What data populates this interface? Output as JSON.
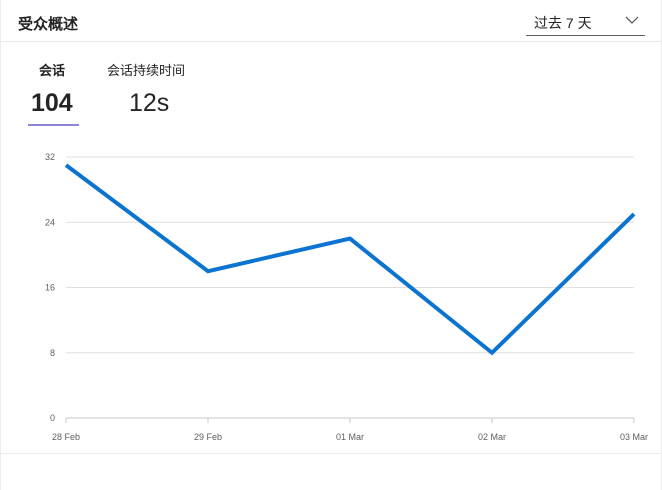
{
  "header": {
    "title": "受众概述",
    "dropdown": {
      "selected": "过去 7 天",
      "icon": "chevron-down-icon"
    }
  },
  "tabs": [
    {
      "label": "会话",
      "value": "104",
      "active": true
    },
    {
      "label": "会话持续时间",
      "value": "12s",
      "active": false
    }
  ],
  "colors": {
    "line": "#0a74d0",
    "tab_indicator": "#8b86d8",
    "grid": "#e1dfdd"
  },
  "chart_data": {
    "type": "line",
    "categories": [
      "28 Feb",
      "29 Feb",
      "01 Mar",
      "02 Mar",
      "03 Mar"
    ],
    "series": [
      {
        "values": [
          31,
          18,
          22,
          8,
          25
        ]
      }
    ],
    "yticks": [
      "0",
      "8",
      "16",
      "24",
      "32"
    ],
    "ylim": [
      0,
      32
    ],
    "grid": true
  }
}
